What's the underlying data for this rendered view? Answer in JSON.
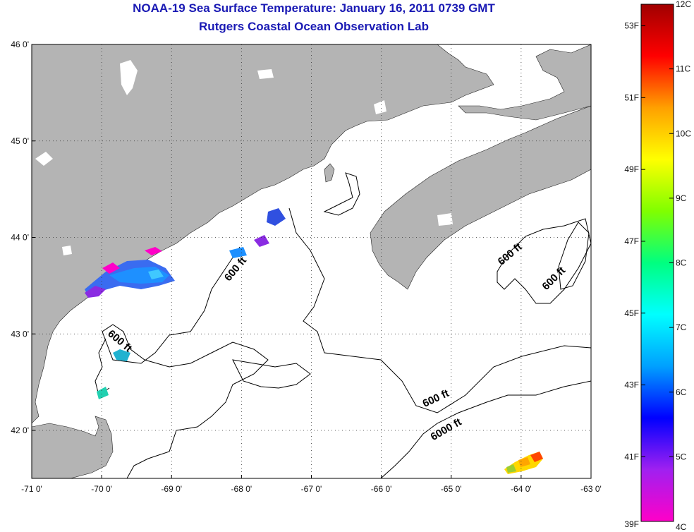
{
  "title": {
    "line1": "NOAA-19 Sea Surface Temperature:  January 16, 2011 0739 GMT",
    "line2": "Rutgers Coastal Ocean Observation Lab"
  },
  "map": {
    "lon_ticks": [
      "-71 0'",
      "-70 0'",
      "-69 0'",
      "-68 0'",
      "-67 0'",
      "-66 0'",
      "-65 0'",
      "-64 0'",
      "-63 0'"
    ],
    "lat_ticks": [
      "46 0'",
      "45 0'",
      "44 0'",
      "43 0'",
      "42 0'"
    ],
    "lon_range": [
      -71,
      -63
    ],
    "lat_range": [
      41.55,
      46
    ],
    "grid": "dotted",
    "land_color": "#b4b4b4",
    "contour_labels": [
      {
        "text": "600 ft",
        "lon": -68.05,
        "lat": 43.65,
        "angle": -50
      },
      {
        "text": "600 ft",
        "lon": -69.77,
        "lat": 42.9,
        "angle": 40
      },
      {
        "text": "600 ft",
        "lon": -64.13,
        "lat": 43.8,
        "angle": -40
      },
      {
        "text": "600 ft",
        "lon": -63.5,
        "lat": 43.55,
        "angle": -45
      },
      {
        "text": "600 ft",
        "lon": -65.2,
        "lat": 42.3,
        "angle": -25
      },
      {
        "text": "6000 ft",
        "lon": -65.05,
        "lat": 41.98,
        "angle": -30
      }
    ]
  },
  "colorbar": {
    "f_labels": [
      "53F",
      "51F",
      "49F",
      "47F",
      "45F",
      "43F",
      "41F",
      "39F"
    ],
    "c_labels": [
      "12C",
      "11C",
      "10C",
      "9C",
      "8C",
      "7C",
      "6C",
      "5C",
      "4C"
    ],
    "colors": [
      "#ff00c8",
      "#a020f0",
      "#0000ff",
      "#00a0ff",
      "#00ffff",
      "#00ff80",
      "#80ff00",
      "#ffff00",
      "#ffa000",
      "#ff0000",
      "#a00000"
    ]
  }
}
